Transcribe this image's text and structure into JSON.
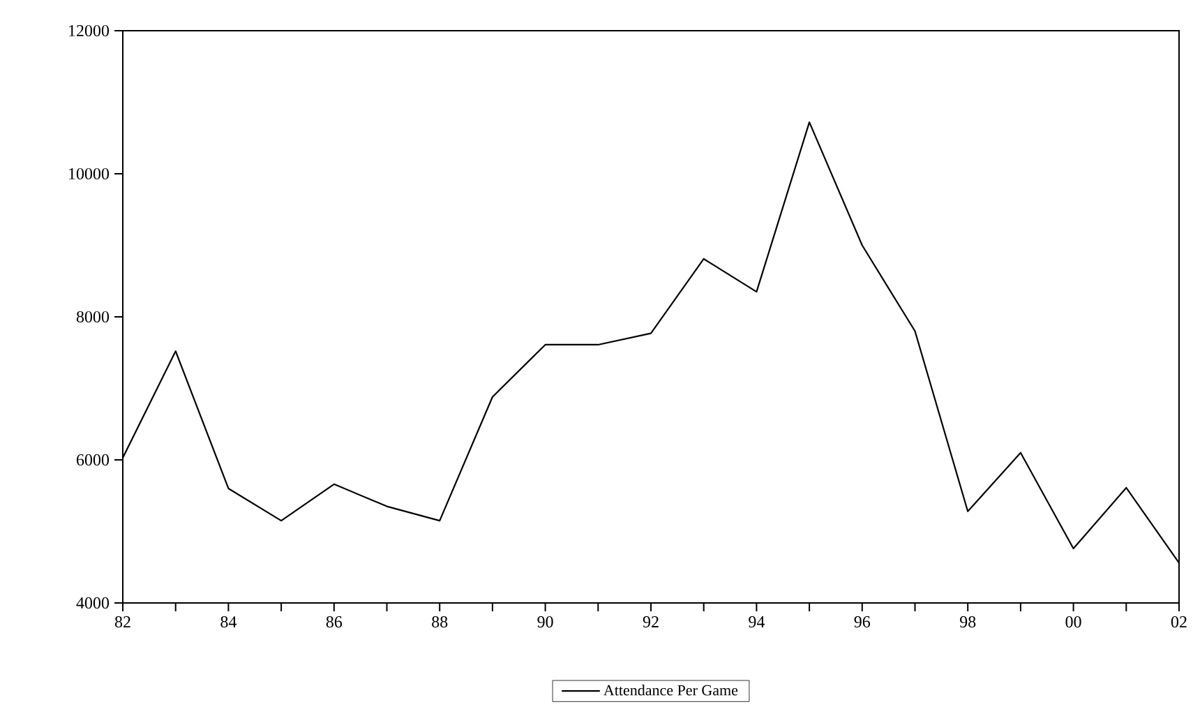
{
  "chart_data": {
    "type": "line",
    "x": [
      1982,
      1983,
      1984,
      1985,
      1986,
      1987,
      1988,
      1989,
      1990,
      1991,
      1992,
      1993,
      1994,
      1995,
      1996,
      1997,
      1998,
      1999,
      2000,
      2001,
      2002
    ],
    "series": [
      {
        "name": "Attendance Per Game",
        "color": "#000000",
        "values": [
          6030,
          7520,
          5600,
          5150,
          5660,
          5350,
          5150,
          6880,
          7610,
          7610,
          7770,
          8810,
          8350,
          10720,
          9000,
          7800,
          5280,
          6100,
          4760,
          5610,
          4560
        ]
      }
    ],
    "xlim": [
      1982,
      2002
    ],
    "xticks": [
      {
        "value": 1982,
        "label": "82"
      },
      {
        "value": 1983,
        "label": null
      },
      {
        "value": 1984,
        "label": "84"
      },
      {
        "value": 1985,
        "label": null
      },
      {
        "value": 1986,
        "label": "86"
      },
      {
        "value": 1987,
        "label": null
      },
      {
        "value": 1988,
        "label": "88"
      },
      {
        "value": 1989,
        "label": null
      },
      {
        "value": 1990,
        "label": "90"
      },
      {
        "value": 1991,
        "label": null
      },
      {
        "value": 1992,
        "label": "92"
      },
      {
        "value": 1993,
        "label": null
      },
      {
        "value": 1994,
        "label": "94"
      },
      {
        "value": 1995,
        "label": null
      },
      {
        "value": 1996,
        "label": "96"
      },
      {
        "value": 1997,
        "label": null
      },
      {
        "value": 1998,
        "label": "98"
      },
      {
        "value": 1999,
        "label": null
      },
      {
        "value": 2000,
        "label": "00"
      },
      {
        "value": 2001,
        "label": null
      },
      {
        "value": 2002,
        "label": "02"
      }
    ],
    "ylim": [
      4000,
      12000
    ],
    "yticks": [
      4000,
      6000,
      8000,
      10000,
      12000
    ],
    "legend": "bottom",
    "grid": false,
    "marker": "none",
    "line_style": "solid"
  }
}
